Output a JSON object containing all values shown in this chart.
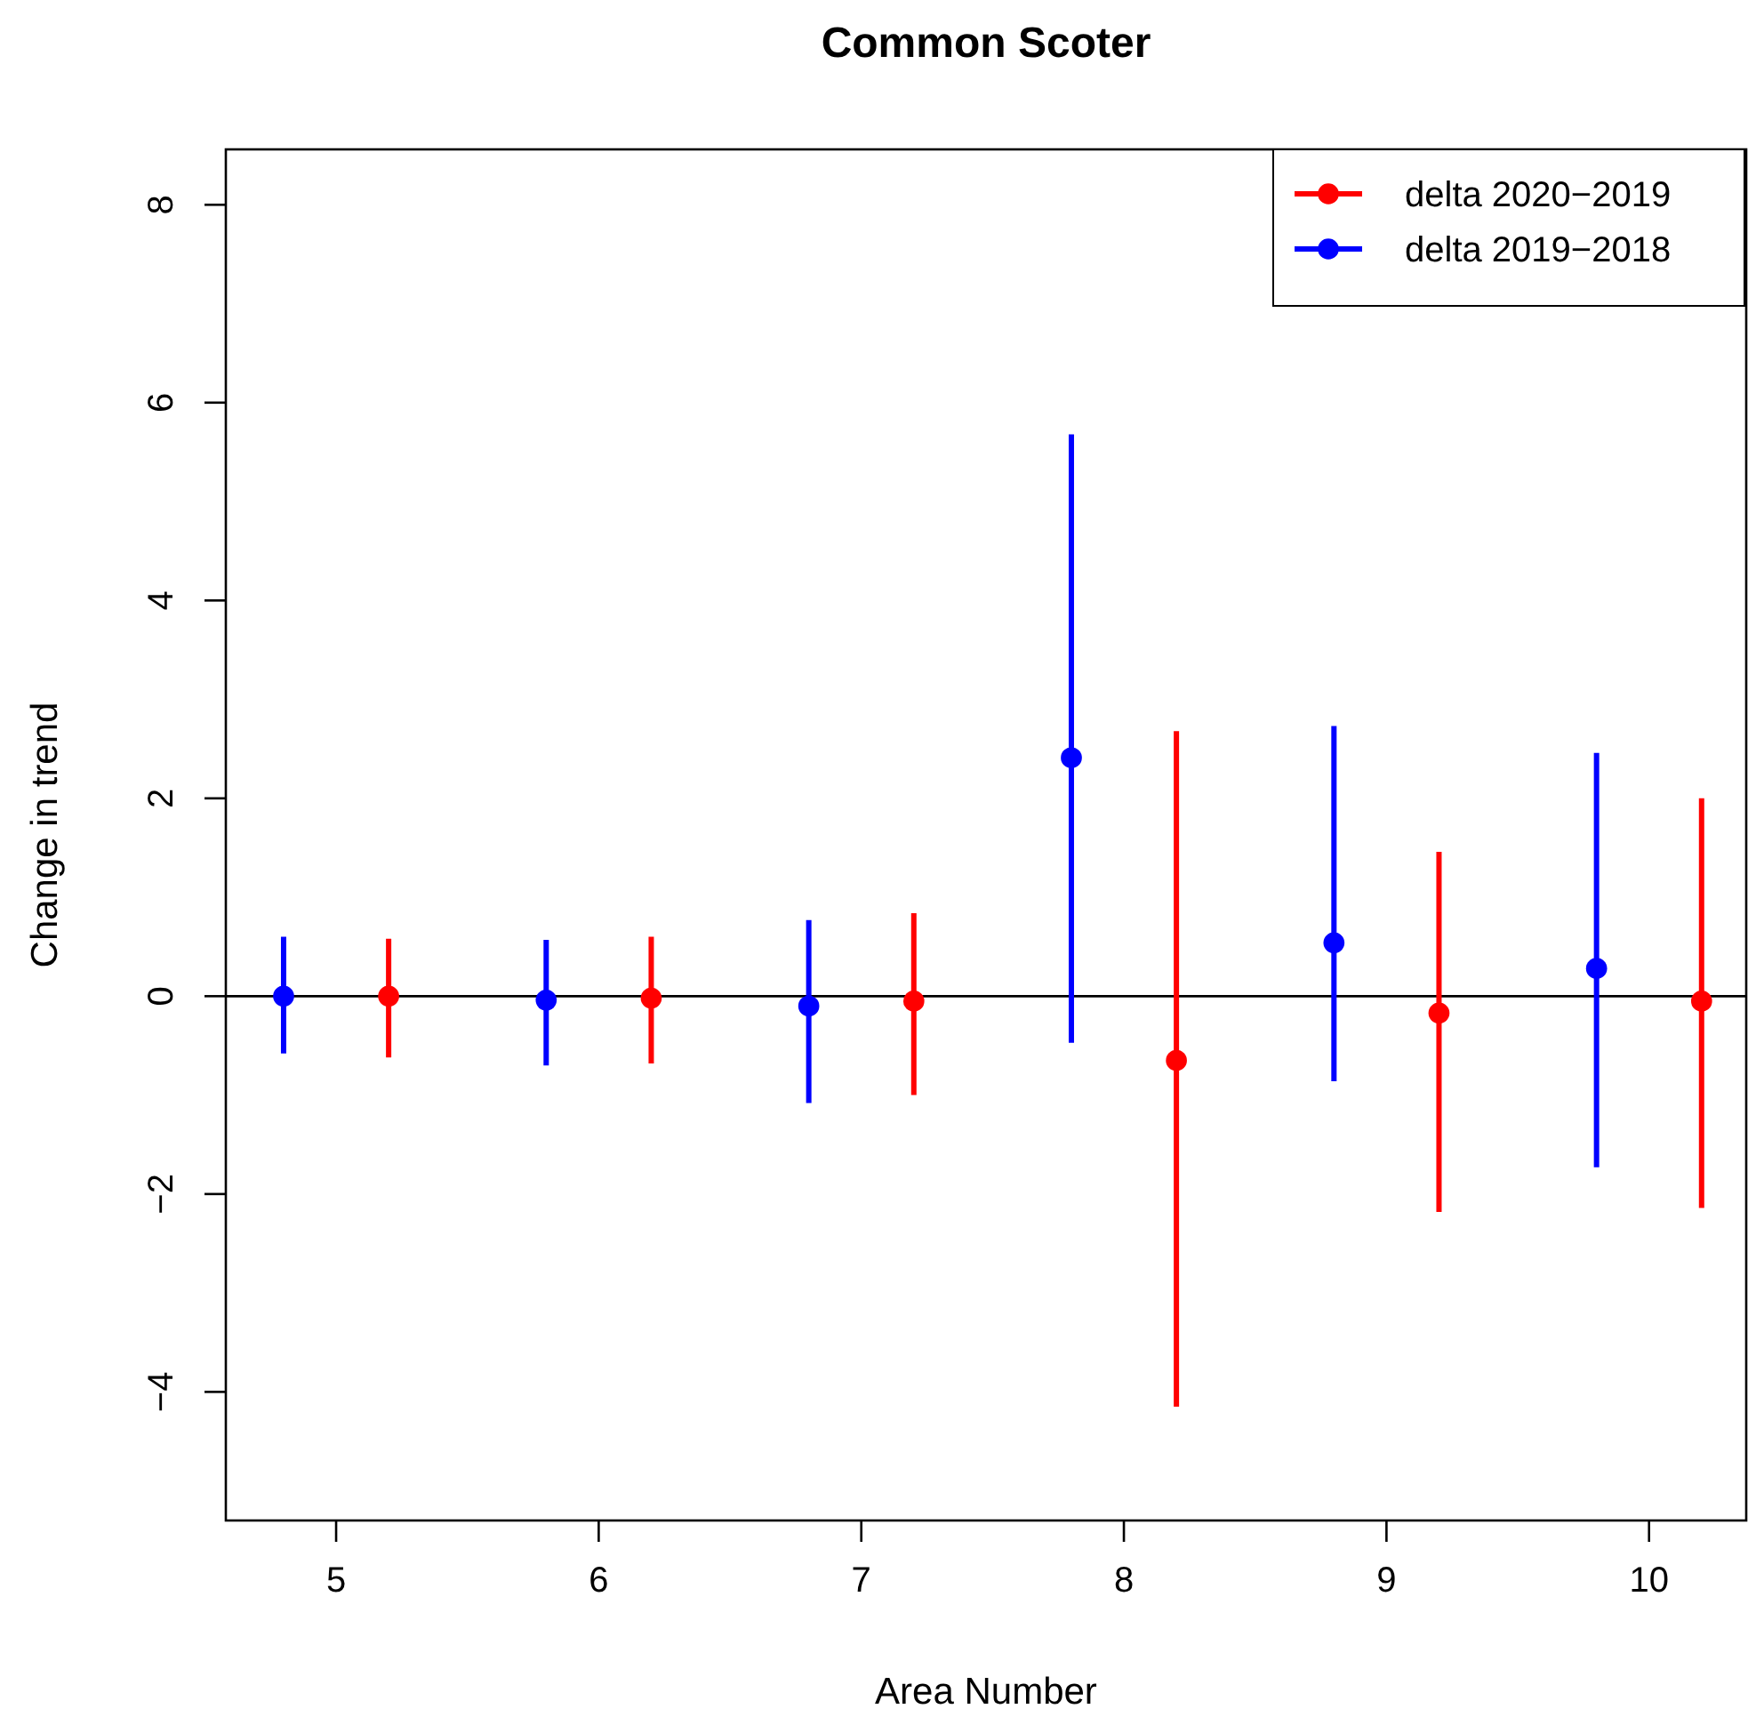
{
  "chart_data": {
    "type": "scatter",
    "title": "Common Scoter",
    "xlabel": "Area Number",
    "ylabel": "Change in trend",
    "xlim": [
      4.58,
      10.37
    ],
    "xticks": [
      5,
      6,
      7,
      8,
      9,
      10
    ],
    "ylim": [
      -5.3,
      8.56
    ],
    "yticks": [
      {
        "value": -4,
        "label": "−4"
      },
      {
        "value": -2,
        "label": "−2"
      },
      0,
      2,
      4,
      6,
      8
    ],
    "series": [
      {
        "name": "delta 2020−2019",
        "color": "#ff0000",
        "x": [
          5.2,
          6.2,
          7.2,
          8.2,
          9.2,
          10.2
        ],
        "values": [
          0,
          -0.02,
          -0.05,
          -0.65,
          -0.17,
          -0.05
        ],
        "errors": [
          [
            -0.62,
            0.58
          ],
          [
            -0.68,
            0.6
          ],
          [
            -1.0,
            0.84
          ],
          [
            -4.15,
            2.68
          ],
          [
            -2.18,
            1.46
          ],
          [
            -2.14,
            2.0
          ]
        ]
      },
      {
        "name": "delta 2019−2018",
        "color": "#0000ff",
        "x": [
          4.8,
          5.8,
          6.8,
          7.8,
          8.8,
          9.8
        ],
        "values": [
          0,
          -0.04,
          -0.1,
          2.41,
          0.54,
          0.28
        ],
        "errors": [
          [
            -0.58,
            0.6
          ],
          [
            -0.7,
            0.57
          ],
          [
            -1.08,
            0.77
          ],
          [
            -0.47,
            5.68
          ],
          [
            -0.86,
            2.73
          ],
          [
            -1.73,
            2.46
          ]
        ]
      }
    ],
    "ref_lines": [
      {
        "axis": "y",
        "value": 0,
        "color": "#000000"
      }
    ],
    "marker": "circle",
    "grid": false,
    "legend": "top right"
  }
}
